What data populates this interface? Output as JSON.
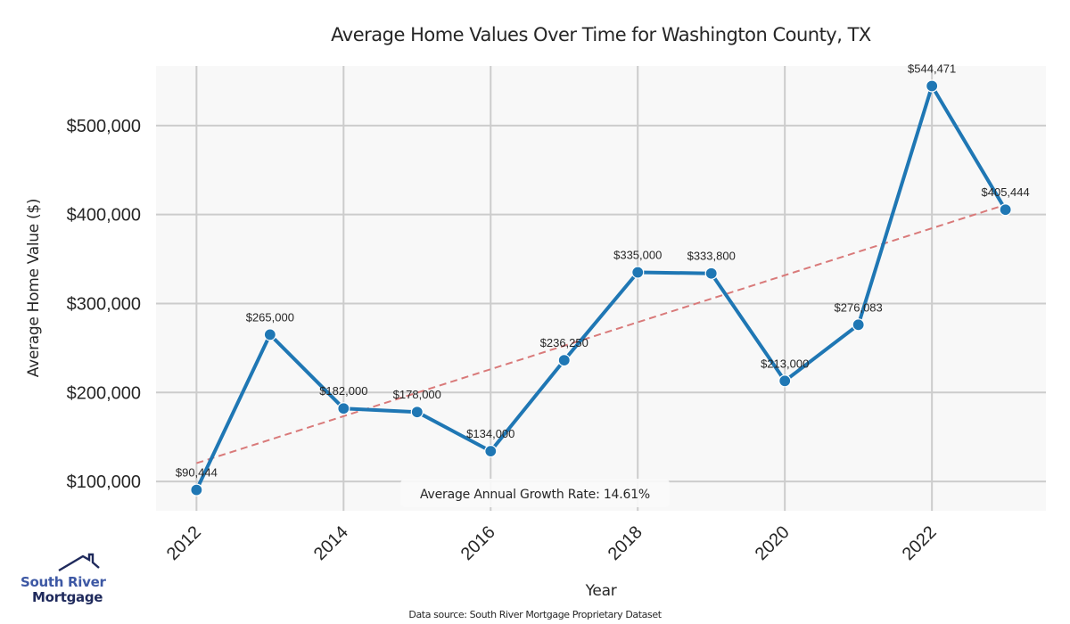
{
  "chart_data": {
    "type": "line",
    "title": "Average Home Values Over Time for Washington County, TX",
    "xlabel": "Year",
    "ylabel": "Average Home Value ($)",
    "x": [
      2012,
      2013,
      2014,
      2015,
      2016,
      2017,
      2018,
      2019,
      2020,
      2021,
      2022,
      2023
    ],
    "series": [
      {
        "name": "Average Home Value",
        "values": [
          90444,
          265000,
          182000,
          178000,
          134000,
          236250,
          335000,
          333800,
          213000,
          276083,
          544471,
          405444
        ],
        "labels": [
          "$90,444",
          "$265,000",
          "$182,000",
          "$178,000",
          "$134,000",
          "$236,250",
          "$335,000",
          "$333,800",
          "$213,000",
          "$276,083",
          "$544,471",
          "$405,444"
        ],
        "color": "#1f77b4"
      }
    ],
    "trend_line": {
      "name": "Trend",
      "start": {
        "x": 2012,
        "y": 120500
      },
      "end": {
        "x": 2023,
        "y": 411000
      },
      "color": "#d97a7a",
      "style": "dashed"
    },
    "x_ticks": [
      2012,
      2014,
      2016,
      2018,
      2020,
      2022
    ],
    "x_tick_labels": [
      "2012",
      "2014",
      "2016",
      "2018",
      "2020",
      "2022"
    ],
    "y_ticks": [
      100000,
      200000,
      300000,
      400000,
      500000
    ],
    "y_tick_labels": [
      "$100,000",
      "$200,000",
      "$300,000",
      "$400,000",
      "$500,000"
    ],
    "xlim": [
      2011.45,
      2023.55
    ],
    "ylim": [
      67000,
      567000
    ],
    "grid": true,
    "background": "#f8f8f8",
    "grid_color": "#cccccc",
    "annotation": "Average Annual Growth Rate: 14.61%",
    "source": "Data source: South River Mortgage Proprietary Dataset"
  },
  "logo": {
    "line1": "South River",
    "line2": "Mortgage"
  }
}
